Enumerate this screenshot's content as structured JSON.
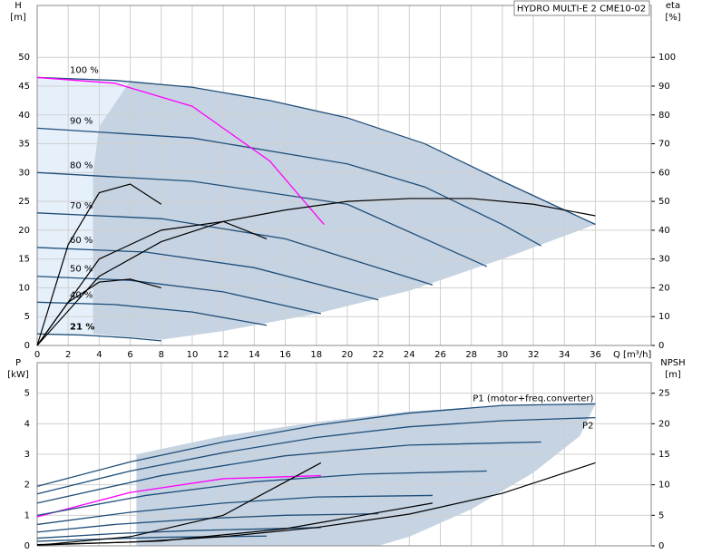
{
  "chart_data": [
    {
      "type": "line",
      "title": "HYDRO MULTI-E 2 CME10-02",
      "ylabel": "H",
      "yunit": "[m]",
      "y2label": "eta",
      "y2unit": "[%]",
      "xlabel": "Q [m³/h]",
      "xlim": [
        0,
        39.6
      ],
      "xticks": [
        0,
        2,
        4,
        6,
        8,
        10,
        12,
        14,
        16,
        18,
        20,
        22,
        24,
        26,
        28,
        30,
        32,
        34,
        36
      ],
      "ylim": [
        0,
        59
      ],
      "yticks": [
        0,
        5,
        10,
        15,
        20,
        25,
        30,
        35,
        40,
        45,
        50
      ],
      "y2lim": [
        0,
        118
      ],
      "y2ticks": [
        0,
        10,
        20,
        30,
        40,
        50,
        60,
        70,
        80,
        90,
        100
      ],
      "grid": true,
      "areas": [
        {
          "color": "#e6f0fa",
          "x": [
            0,
            6,
            4,
            3.6,
            3.6,
            0
          ],
          "values": [
            46.5,
            45.9,
            38,
            30,
            2,
            2
          ]
        },
        {
          "color": "#c5d3e2",
          "x": [
            6,
            10,
            15,
            20,
            25,
            30,
            36,
            30,
            24,
            18,
            12,
            8,
            3.6,
            3.6,
            4
          ],
          "values": [
            45.9,
            44.8,
            42.5,
            39.5,
            35,
            28.5,
            21,
            15,
            9.5,
            5.5,
            2.5,
            1,
            2,
            30,
            38
          ]
        }
      ],
      "series": [
        {
          "name": "100 %",
          "color": "#1f4e79",
          "x": [
            0,
            5,
            10,
            15,
            20,
            25,
            30,
            36
          ],
          "values": [
            46.5,
            46,
            44.8,
            42.5,
            39.5,
            35,
            28.5,
            21
          ]
        },
        {
          "name": "90 %",
          "color": "#1f4e79",
          "x": [
            0,
            10,
            20,
            25,
            30,
            32.5
          ],
          "values": [
            37.7,
            36,
            31.5,
            27.5,
            21,
            17.3
          ]
        },
        {
          "name": "80 %",
          "color": "#1f4e79",
          "x": [
            0,
            10,
            20,
            29
          ],
          "values": [
            30,
            28.5,
            24.5,
            13.7
          ]
        },
        {
          "name": "70 %",
          "color": "#1f4e79",
          "x": [
            0,
            8,
            16,
            25.5
          ],
          "values": [
            23,
            22,
            18.5,
            10.5
          ]
        },
        {
          "name": "60 %",
          "color": "#1f4e79",
          "x": [
            0,
            7,
            14,
            22
          ],
          "values": [
            17,
            16.2,
            13.5,
            7.9
          ]
        },
        {
          "name": "50 %",
          "color": "#1f4e79",
          "x": [
            0,
            6,
            12,
            18.3
          ],
          "values": [
            12,
            11.3,
            9.3,
            5.5
          ]
        },
        {
          "name": "40 %",
          "color": "#1f4e79",
          "x": [
            0,
            5,
            10,
            14.8
          ],
          "values": [
            7.5,
            7.1,
            5.8,
            3.5
          ]
        },
        {
          "name": "21 %",
          "color": "#1f4e79",
          "x": [
            0,
            3,
            6,
            8
          ],
          "values": [
            2,
            1.8,
            1.3,
            0.8
          ]
        },
        {
          "color": "#ff00ff",
          "x": [
            0,
            5,
            10,
            15,
            18.5
          ],
          "values": [
            46.5,
            45.5,
            41.5,
            32,
            21
          ]
        },
        {
          "color": "#000000",
          "axis": "y2",
          "x": [
            0,
            4,
            8,
            12,
            16,
            20,
            24,
            28,
            32,
            36
          ],
          "values": [
            0,
            24,
            36,
            43,
            47,
            50,
            51,
            51,
            49,
            45
          ]
        },
        {
          "color": "#000000",
          "axis": "y2",
          "x": [
            0,
            4,
            8,
            12,
            14.8
          ],
          "values": [
            0,
            30,
            40,
            43,
            37
          ]
        },
        {
          "color": "#000000",
          "axis": "y2",
          "x": [
            0,
            2,
            4,
            6,
            8
          ],
          "values": [
            0,
            35,
            53,
            56,
            49
          ]
        },
        {
          "color": "#000000",
          "axis": "y2",
          "x": [
            0,
            2,
            4,
            6,
            8
          ],
          "values": [
            0,
            15,
            22,
            23,
            20
          ]
        }
      ]
    },
    {
      "type": "line",
      "ylabel": "P",
      "yunit": "[kW]",
      "y2label": "NPSH",
      "y2unit": "[m]",
      "xlim": [
        0,
        39.6
      ],
      "xticks": [
        0,
        2,
        4,
        6,
        8,
        10,
        12,
        14,
        16,
        18,
        20,
        22,
        24,
        26,
        28,
        30,
        32,
        34,
        36
      ],
      "ylim": [
        0,
        6
      ],
      "yticks": [
        0,
        1,
        2,
        3,
        4,
        5
      ],
      "y2lim": [
        0,
        30
      ],
      "y2ticks": [
        0,
        5,
        10,
        15,
        20,
        25
      ],
      "grid": true,
      "areas": [
        {
          "color": "#c5d3e2",
          "x": [
            6.4,
            6.4,
            12,
            18,
            24,
            30,
            36,
            35,
            32,
            28,
            24,
            22
          ],
          "values": [
            0,
            3,
            3.6,
            4.05,
            4.4,
            4.6,
            4.65,
            3.6,
            2.4,
            1.2,
            0.3,
            0
          ]
        }
      ],
      "series": [
        {
          "name": "P1 (motor+freq.converter)",
          "color": "#1f4e79",
          "x": [
            0,
            6,
            12,
            18,
            24,
            30,
            36
          ],
          "values": [
            1.95,
            2.75,
            3.4,
            3.95,
            4.35,
            4.6,
            4.65
          ]
        },
        {
          "name": "P2",
          "color": "#1f4e79",
          "x": [
            0,
            6,
            12,
            18,
            24,
            30,
            36
          ],
          "values": [
            1.7,
            2.45,
            3.05,
            3.55,
            3.9,
            4.1,
            4.2
          ]
        },
        {
          "color": "#ff00ff",
          "x": [
            0,
            6,
            12,
            18.3
          ],
          "values": [
            0.95,
            1.75,
            2.2,
            2.3
          ]
        },
        {
          "color": "#1f4e79",
          "x": [
            0,
            8,
            16,
            24,
            32.5
          ],
          "values": [
            1.4,
            2.3,
            2.95,
            3.3,
            3.4
          ]
        },
        {
          "color": "#1f4e79",
          "x": [
            0,
            7,
            14,
            21,
            29
          ],
          "values": [
            1,
            1.65,
            2.1,
            2.35,
            2.45
          ]
        },
        {
          "color": "#1f4e79",
          "x": [
            0,
            6,
            12,
            18,
            25.5
          ],
          "values": [
            0.7,
            1.1,
            1.4,
            1.6,
            1.65
          ]
        },
        {
          "color": "#1f4e79",
          "x": [
            0,
            5,
            11,
            16,
            22
          ],
          "values": [
            0.45,
            0.7,
            0.9,
            1,
            1.05
          ]
        },
        {
          "color": "#1f4e79",
          "x": [
            0,
            5,
            10,
            18.3
          ],
          "values": [
            0.25,
            0.4,
            0.5,
            0.6
          ]
        },
        {
          "color": "#1f4e79",
          "x": [
            0,
            4,
            8,
            14.8
          ],
          "values": [
            0.15,
            0.22,
            0.28,
            0.32
          ]
        },
        {
          "color": "#000000",
          "axis": "y2",
          "x": [
            0,
            6,
            12,
            18,
            24,
            30,
            36
          ],
          "values": [
            0.2,
            0.6,
            1.5,
            3,
            5.2,
            8.6,
            13.6
          ]
        },
        {
          "color": "#000000",
          "axis": "y2",
          "x": [
            0,
            8,
            16,
            25.5
          ],
          "values": [
            0.1,
            0.8,
            2.8,
            7
          ]
        },
        {
          "color": "#000000",
          "axis": "y2",
          "x": [
            0,
            6,
            12,
            18.3
          ],
          "values": [
            0.1,
            1.5,
            5,
            13.6
          ]
        }
      ]
    }
  ]
}
